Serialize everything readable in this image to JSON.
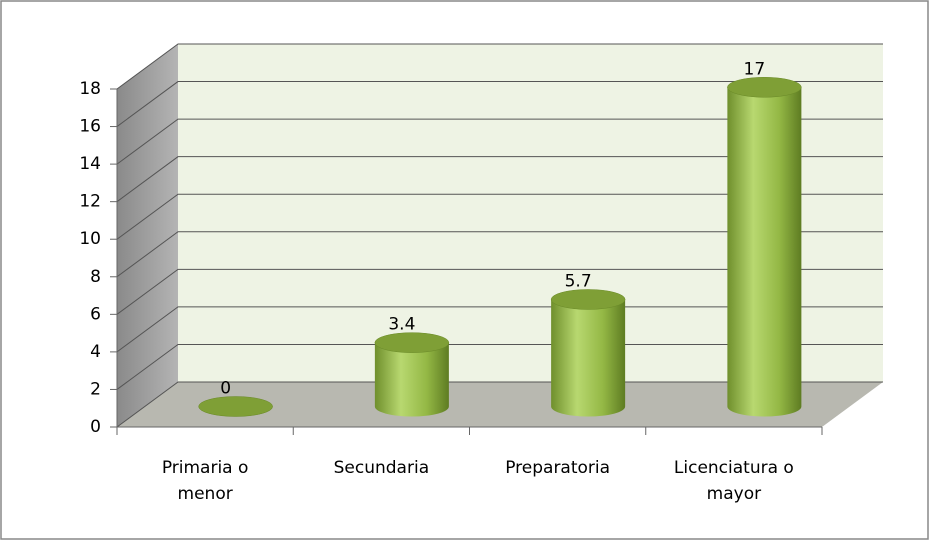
{
  "chart_data": {
    "type": "bar",
    "categories": [
      "Primaria o menor",
      "Secundaria",
      "Preparatoria",
      "Licenciatura o mayor"
    ],
    "values": [
      0,
      3.4,
      5.7,
      17
    ],
    "color": "#8fb43e",
    "ylim": [
      0,
      18
    ],
    "yticks": [
      0,
      2,
      4,
      6,
      8,
      10,
      12,
      14,
      16,
      18
    ],
    "grid": true
  }
}
